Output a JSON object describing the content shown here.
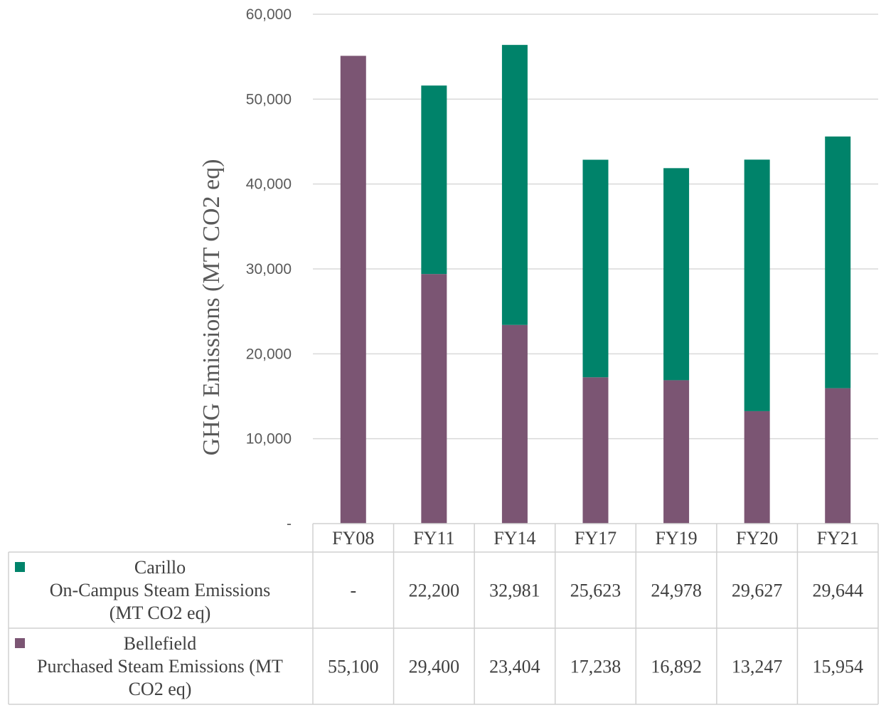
{
  "chart_data": {
    "type": "bar",
    "stacked": true,
    "categories": [
      "FY08",
      "FY11",
      "FY14",
      "FY17",
      "FY19",
      "FY20",
      "FY21"
    ],
    "series": [
      {
        "name": "Bellefield Purchased Steam Emissions (MT CO2 eq)",
        "label_lines": [
          "Bellefield",
          "Purchased Steam Emissions (MT",
          "CO2 eq)"
        ],
        "color": "#7b5573",
        "values": [
          55100,
          29400,
          23404,
          17238,
          16892,
          13247,
          15954
        ],
        "display": [
          "55,100",
          "29,400",
          "23,404",
          "17,238",
          "16,892",
          "13,247",
          "15,954"
        ]
      },
      {
        "name": "Carillo On-Campus Steam Emissions (MT CO2 eq)",
        "label_lines": [
          "Carillo",
          "On-Campus Steam Emissions",
          "(MT CO2 eq)"
        ],
        "color": "#00836a",
        "values": [
          0,
          22200,
          32981,
          25623,
          24978,
          29627,
          29644
        ],
        "display": [
          "-",
          "22,200",
          "32,981",
          "25,623",
          "24,978",
          "29,627",
          "29,644"
        ]
      }
    ],
    "ylabel": "GHG Emissions (MT CO2 eq)",
    "ylim": [
      0,
      60000
    ],
    "yticks": [
      0,
      10000,
      20000,
      30000,
      40000,
      50000,
      60000
    ],
    "ytick_labels": [
      "-",
      "10,000",
      "20,000",
      "30,000",
      "40,000",
      "50,000",
      "60,000"
    ],
    "grid": true,
    "legend": "data-table"
  }
}
